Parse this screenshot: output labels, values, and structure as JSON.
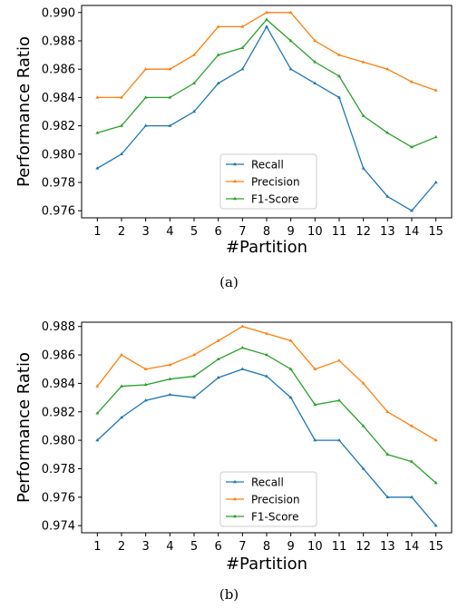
{
  "chart_data": [
    {
      "type": "line",
      "caption": "(a)",
      "xlabel": "#Partition",
      "ylabel": "Performance Ratio",
      "x": [
        1,
        2,
        3,
        4,
        5,
        6,
        7,
        8,
        9,
        10,
        11,
        12,
        13,
        14,
        15
      ],
      "ylim": [
        0.9755,
        0.9905
      ],
      "yticks": [
        "0.976",
        "0.978",
        "0.980",
        "0.982",
        "0.984",
        "0.986",
        "0.988",
        "0.990"
      ],
      "legend_position": "lower-center",
      "series": [
        {
          "name": "Recall",
          "color": "#1f77b4",
          "values": [
            0.979,
            0.98,
            0.982,
            0.982,
            0.983,
            0.985,
            0.986,
            0.989,
            0.986,
            0.985,
            0.984,
            0.979,
            0.977,
            0.976,
            0.978
          ]
        },
        {
          "name": "Precision",
          "color": "#ff7f0e",
          "values": [
            0.984,
            0.984,
            0.986,
            0.986,
            0.987,
            0.989,
            0.989,
            0.99,
            0.99,
            0.988,
            0.987,
            0.9865,
            0.986,
            0.9851,
            0.9845
          ]
        },
        {
          "name": "F1-Score",
          "color": "#2ca02c",
          "values": [
            0.9815,
            0.982,
            0.984,
            0.984,
            0.985,
            0.987,
            0.9875,
            0.9895,
            0.988,
            0.9865,
            0.9855,
            0.9827,
            0.9815,
            0.9805,
            0.9812
          ]
        }
      ]
    },
    {
      "type": "line",
      "caption": "(b)",
      "xlabel": "#Partition",
      "ylabel": "Performance Ratio",
      "x": [
        1,
        2,
        3,
        4,
        5,
        6,
        7,
        8,
        9,
        10,
        11,
        12,
        13,
        14,
        15
      ],
      "ylim": [
        0.9735,
        0.9883
      ],
      "yticks": [
        "0.974",
        "0.976",
        "0.978",
        "0.980",
        "0.982",
        "0.984",
        "0.986",
        "0.988"
      ],
      "legend_position": "lower-center",
      "series": [
        {
          "name": "Recall",
          "color": "#1f77b4",
          "values": [
            0.98,
            0.9816,
            0.9828,
            0.9832,
            0.983,
            0.9844,
            0.985,
            0.9845,
            0.983,
            0.98,
            0.98,
            0.978,
            0.976,
            0.976,
            0.974
          ]
        },
        {
          "name": "Precision",
          "color": "#ff7f0e",
          "values": [
            0.9838,
            0.986,
            0.985,
            0.9853,
            0.986,
            0.987,
            0.988,
            0.9875,
            0.987,
            0.985,
            0.9856,
            0.984,
            0.982,
            0.981,
            0.98
          ]
        },
        {
          "name": "F1-Score",
          "color": "#2ca02c",
          "values": [
            0.9819,
            0.9838,
            0.9839,
            0.9843,
            0.9845,
            0.9857,
            0.9865,
            0.986,
            0.985,
            0.9825,
            0.9828,
            0.981,
            0.979,
            0.9785,
            0.977
          ]
        }
      ]
    }
  ]
}
